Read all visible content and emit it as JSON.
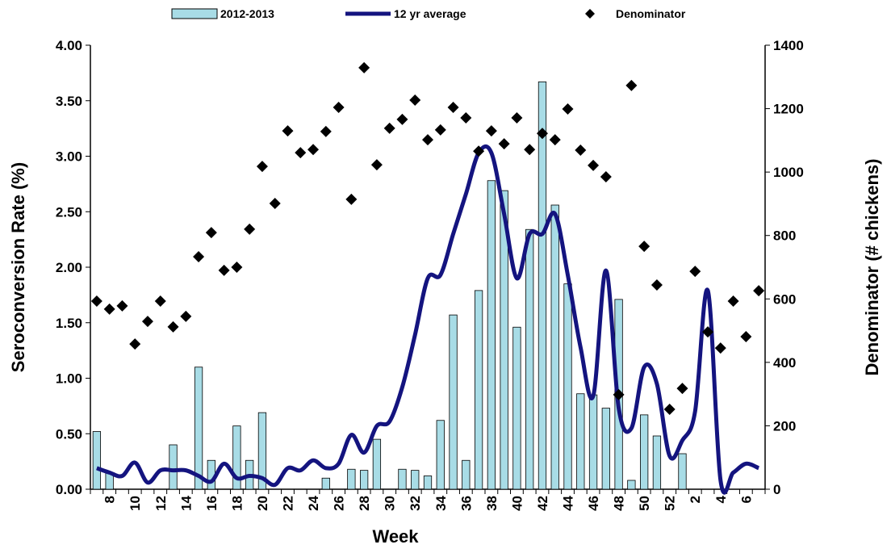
{
  "chart_data": {
    "type": "combo",
    "x_label": "Week",
    "y_label": "Seroconversion Rate (%)",
    "y2_label": "Denominator  (# chickens)",
    "categories": [
      null,
      "8",
      null,
      "10",
      null,
      "12",
      null,
      "14",
      null,
      "16",
      null,
      "18",
      null,
      "20",
      null,
      "22",
      null,
      "24",
      null,
      "26",
      null,
      "28",
      null,
      "30",
      null,
      "32",
      null,
      "34",
      null,
      "36",
      null,
      "38",
      null,
      "40",
      null,
      "42",
      null,
      "44",
      null,
      "46",
      null,
      "48",
      null,
      "50",
      null,
      "52",
      null,
      "2",
      null,
      "4",
      null,
      "6",
      null
    ],
    "ylim": [
      0,
      4
    ],
    "yticks": [
      {
        "value": 0,
        "label": "0.00"
      },
      {
        "value": 0.5,
        "label": "0.50"
      },
      {
        "value": 1,
        "label": "1.00"
      },
      {
        "value": 1.5,
        "label": "1.50"
      },
      {
        "value": 2,
        "label": "2.00"
      },
      {
        "value": 2.5,
        "label": "2.50"
      },
      {
        "value": 3,
        "label": "3.00"
      },
      {
        "value": 3.5,
        "label": "3.50"
      },
      {
        "value": 4,
        "label": "4.00"
      }
    ],
    "y2lim": [
      0,
      1400
    ],
    "y2ticks": [
      0,
      200,
      400,
      600,
      800,
      1000,
      1200,
      1400
    ],
    "series": [
      {
        "name": "2012-2013",
        "type": "bar",
        "color": "#a8dce6",
        "values": [
          0.52,
          0.15,
          0,
          0,
          0,
          0,
          0.4,
          0,
          1.1,
          0.26,
          0,
          0.57,
          0.26,
          0.69,
          0,
          0,
          0,
          0,
          0.1,
          0,
          0.18,
          0.17,
          0.45,
          0,
          0.18,
          0.17,
          0.12,
          0.62,
          1.57,
          0.26,
          1.79,
          2.78,
          2.69,
          1.46,
          2.34,
          3.67,
          2.56,
          1.85,
          0.86,
          0.85,
          0.73,
          1.71,
          0.08,
          0.67,
          0.48,
          0,
          0.32,
          0,
          0,
          0,
          0,
          0,
          0
        ]
      },
      {
        "name": "12 yr average",
        "type": "line",
        "color": "#14147f",
        "values": [
          0.19,
          0.15,
          0.12,
          0.24,
          0.06,
          0.17,
          0.17,
          0.17,
          0.12,
          0.07,
          0.23,
          0.1,
          0.12,
          0.1,
          0.04,
          0.19,
          0.17,
          0.26,
          0.19,
          0.23,
          0.49,
          0.33,
          0.57,
          0.61,
          0.92,
          1.39,
          1.9,
          1.93,
          2.3,
          2.66,
          3.03,
          3.03,
          2.48,
          1.9,
          2.3,
          2.3,
          2.48,
          1.93,
          1.28,
          0.84,
          1.97,
          0.73,
          0.55,
          1.1,
          0.95,
          0.3,
          0.44,
          0.7,
          1.79,
          0.08,
          0.15,
          0.23,
          0.19
        ]
      },
      {
        "name": "Denominator",
        "type": "scatter",
        "axis": "y2",
        "color": "#000000",
        "values": [
          593,
          568,
          578,
          458,
          529,
          593,
          512,
          545,
          733,
          809,
          690,
          700,
          820,
          1018,
          901,
          1130,
          1061,
          1071,
          1128,
          1204,
          914,
          1329,
          1023,
          1138,
          1166,
          1227,
          1102,
          1133,
          1204,
          1171,
          1066,
          1130,
          1089,
          1171,
          1071,
          1122,
          1102,
          1199,
          1069,
          1021,
          985,
          298,
          1273,
          766,
          644,
          252,
          318,
          687,
          496,
          445,
          593,
          481,
          626
        ]
      }
    ]
  }
}
